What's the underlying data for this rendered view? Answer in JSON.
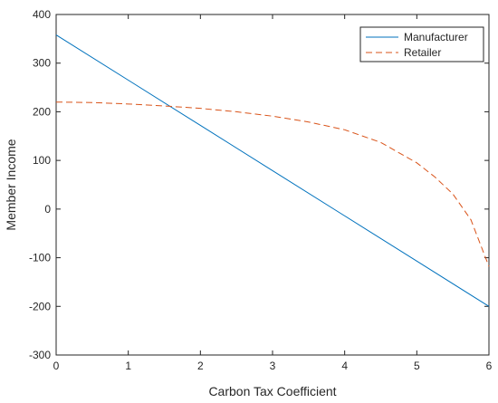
{
  "chart_data": {
    "type": "line",
    "title": "",
    "xlabel": "Carbon Tax Coefficient",
    "ylabel": "Member Income",
    "xlim": [
      0,
      6
    ],
    "ylim": [
      -300,
      400
    ],
    "xticks": [
      0,
      1,
      2,
      3,
      4,
      5,
      6
    ],
    "yticks": [
      -300,
      -200,
      -100,
      0,
      100,
      200,
      300,
      400
    ],
    "grid": false,
    "legend_position": "top-right",
    "series": [
      {
        "name": "Manufacturer",
        "color": "#0072BD",
        "line_style": "solid",
        "x": [
          0,
          1,
          2,
          3,
          4,
          5,
          6
        ],
        "y": [
          358,
          265,
          172,
          79,
          -14,
          -107,
          -200
        ]
      },
      {
        "name": "Retailer",
        "color": "#D95319",
        "line_style": "dashed",
        "x": [
          0,
          0.5,
          1,
          1.5,
          2,
          2.5,
          3,
          3.5,
          4,
          4.5,
          5,
          5.25,
          5.5,
          5.75,
          6
        ],
        "y": [
          220,
          219,
          216,
          212,
          207,
          200,
          191,
          179,
          163,
          137,
          95,
          66,
          31,
          -22,
          -118
        ]
      }
    ]
  }
}
